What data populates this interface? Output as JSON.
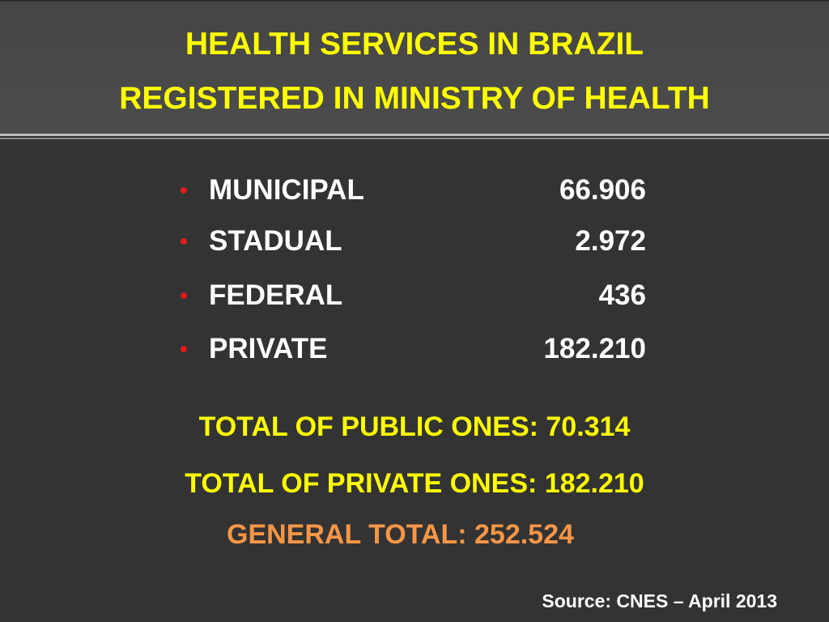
{
  "header": {
    "title_lines": [
      "HEALTH SERVICES IN BRAZIL",
      "REGISTERED IN MINISTRY OF HEALTH"
    ]
  },
  "list": [
    {
      "label": "MUNICIPAL",
      "value": "66.906"
    },
    {
      "label": "STADUAL",
      "value": "2.972"
    },
    {
      "label": "FEDERAL",
      "value": "436"
    },
    {
      "label": "PRIVATE",
      "value": "182.210"
    }
  ],
  "totals": [
    "TOTAL OF PUBLIC ONES: 70.314",
    "TOTAL OF PRIVATE ONES: 182.210"
  ],
  "general_total": "GENERAL TOTAL: 252.524",
  "source": "Source: CNES – April 2013"
}
